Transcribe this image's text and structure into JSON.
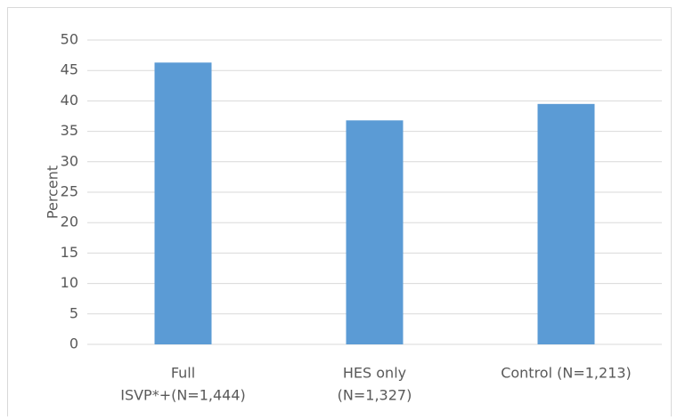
{
  "chart_data": {
    "type": "bar",
    "y_label": "Percent",
    "categories": [
      [
        "Full",
        "ISVP*+(N=1,444)"
      ],
      [
        "HES only",
        "(N=1,327)"
      ],
      [
        "Control (N=1,213)"
      ]
    ],
    "values": [
      46.3,
      36.8,
      39.5
    ],
    "color": "#5b9bd5",
    "ylim": [
      0,
      50
    ],
    "yticks": [
      0,
      5,
      10,
      15,
      20,
      25,
      30,
      35,
      40,
      45,
      50
    ],
    "grid": true
  }
}
